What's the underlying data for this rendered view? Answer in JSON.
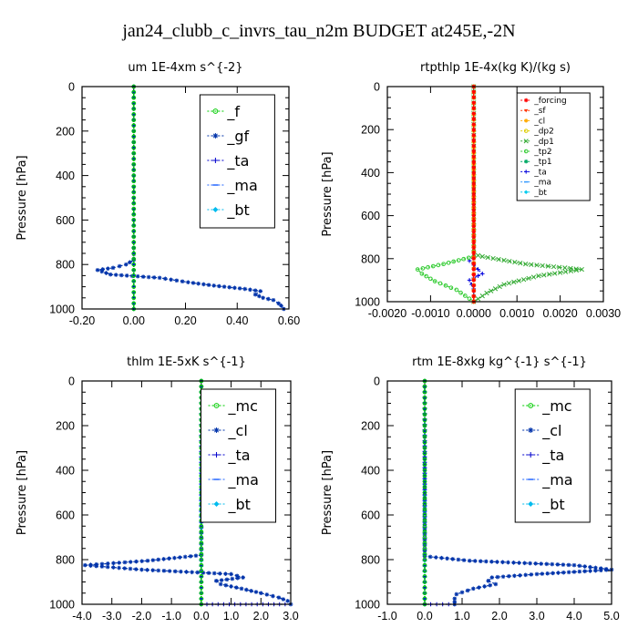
{
  "figure": {
    "title": "jan24_clubb_c_invrs_tau_n2m  BUDGET at245E,-2N"
  },
  "colors": {
    "f": "#00cc00",
    "gf": "#0033aa",
    "ta": "#0000cc",
    "ma": "#2266ff",
    "bt": "#00bbee",
    "mc": "#00cc00",
    "cl": "#0033aa",
    "forcing": "#ff0000",
    "sf": "#ff3300",
    "cl_small": "#ffaa00",
    "dp2": "#ddcc00",
    "dp1": "#33aa33",
    "tp2": "#33cc33",
    "tp1": "#00aa66",
    "ta_small": "#0000dd",
    "ma_small": "#3399ff",
    "bt_small": "#00ccee"
  },
  "chart_data": [
    {
      "type": "line",
      "title": "um   1E-4xm s^{-2}",
      "ylabel": "Pressure [hPa]",
      "xlim": [
        -0.2,
        0.6
      ],
      "ylim": [
        1000,
        0
      ],
      "xticks": [
        "-0.20",
        "0.00",
        "0.20",
        "0.40",
        "0.60"
      ],
      "xtick_values": [
        -0.2,
        0.0,
        0.2,
        0.4,
        0.6
      ],
      "yticks": [
        "0",
        "200",
        "400",
        "600",
        "800",
        "1000"
      ],
      "ytick_values": [
        0,
        200,
        400,
        600,
        800,
        1000
      ],
      "legend_style": "big",
      "series": [
        {
          "name": "_f",
          "color_key": "f",
          "marker": "o",
          "values": [
            [
              0,
              0
            ],
            [
              0,
              100
            ],
            [
              0,
              200
            ],
            [
              0,
              300
            ],
            [
              0,
              400
            ],
            [
              0,
              500
            ],
            [
              0,
              600
            ],
            [
              0,
              700
            ],
            [
              0,
              800
            ],
            [
              0,
              900
            ],
            [
              0,
              1000
            ]
          ]
        },
        {
          "name": "_gf",
          "color_key": "gf",
          "marker": "*",
          "values": [
            [
              0.0,
              0
            ],
            [
              0.0,
              500
            ],
            [
              0.0,
              700
            ],
            [
              0.0,
              780
            ],
            [
              -0.03,
              800
            ],
            [
              -0.08,
              815
            ],
            [
              -0.14,
              825
            ],
            [
              -0.09,
              845
            ],
            [
              0.1,
              860
            ],
            [
              0.21,
              880
            ],
            [
              0.31,
              895
            ],
            [
              0.43,
              910
            ],
            [
              0.49,
              920
            ],
            [
              0.47,
              935
            ],
            [
              0.5,
              950
            ],
            [
              0.54,
              960
            ],
            [
              0.56,
              975
            ],
            [
              0.57,
              985
            ],
            [
              0.58,
              1000
            ]
          ]
        },
        {
          "name": "_ta",
          "color_key": "ta",
          "marker": "+",
          "values": [
            [
              0,
              0
            ],
            [
              0,
              400
            ],
            [
              0,
              800
            ],
            [
              0,
              1000
            ]
          ]
        },
        {
          "name": "_ma",
          "color_key": "ma",
          "marker": "-",
          "values": [
            [
              0,
              0
            ],
            [
              0,
              400
            ],
            [
              0,
              800
            ],
            [
              0,
              1000
            ]
          ]
        },
        {
          "name": "_bt",
          "color_key": "bt",
          "marker": "d",
          "values": [
            [
              0,
              0
            ],
            [
              0,
              400
            ],
            [
              0,
              800
            ],
            [
              0,
              1000
            ]
          ]
        }
      ]
    },
    {
      "type": "line",
      "title": "rtpthlp   1E-4x(kg K)/(kg s)",
      "ylabel": "Pressure [hPa]",
      "xlim": [
        -0.002,
        0.003
      ],
      "ylim": [
        1000,
        0
      ],
      "xticks": [
        "-0.0020",
        "-0.0010",
        "0.0000",
        "0.0010",
        "0.0020",
        "0.0030"
      ],
      "xtick_values": [
        -0.002,
        -0.001,
        0.0,
        0.001,
        0.002,
        0.003
      ],
      "yticks": [
        "0",
        "200",
        "400",
        "600",
        "800",
        "1000"
      ],
      "ytick_values": [
        0,
        200,
        400,
        600,
        800,
        1000
      ],
      "legend_style": "small",
      "series": [
        {
          "name": "_forcing",
          "color_key": "forcing",
          "marker": "*",
          "values": [
            [
              0,
              0
            ],
            [
              0,
              200
            ],
            [
              0,
              400
            ],
            [
              0,
              600
            ],
            [
              0,
              800
            ],
            [
              0,
              1000
            ]
          ]
        },
        {
          "name": "_sf",
          "color_key": "sf",
          "marker": "v",
          "values": [
            [
              0,
              0
            ],
            [
              0,
              1000
            ]
          ]
        },
        {
          "name": "_cl",
          "color_key": "cl_small",
          "marker": "*",
          "values": [
            [
              0,
              0
            ],
            [
              0,
              1000
            ]
          ]
        },
        {
          "name": "_dp2",
          "color_key": "dp2",
          "marker": "o",
          "values": [
            [
              0,
              0
            ],
            [
              0,
              1000
            ]
          ]
        },
        {
          "name": "_dp1",
          "color_key": "dp1",
          "marker": "x",
          "values": [
            [
              0.0,
              0
            ],
            [
              0.0,
              780
            ],
            [
              0.0002,
              790
            ],
            [
              0.0012,
              825
            ],
            [
              0.0025,
              850
            ],
            [
              0.0015,
              880
            ],
            [
              0.0007,
              920
            ],
            [
              0.0003,
              960
            ],
            [
              0.0,
              1000
            ]
          ]
        },
        {
          "name": "_tp2",
          "color_key": "tp2",
          "marker": "o",
          "values": [
            [
              0.0,
              0
            ],
            [
              0.0,
              790
            ],
            [
              -0.0007,
              825
            ],
            [
              -0.0013,
              850
            ],
            [
              -0.0012,
              870
            ],
            [
              -0.0009,
              905
            ],
            [
              -0.0004,
              945
            ],
            [
              0.0,
              1000
            ]
          ]
        },
        {
          "name": "_tp1",
          "color_key": "tp1",
          "marker": "*",
          "values": [
            [
              0,
              0
            ],
            [
              0,
              1000
            ]
          ]
        },
        {
          "name": "_ta",
          "color_key": "ta_small",
          "marker": "+",
          "values": [
            [
              0.0,
              0
            ],
            [
              0.0,
              790
            ],
            [
              -0.0001,
              810
            ],
            [
              0.0001,
              850
            ],
            [
              0.0002,
              870
            ],
            [
              -0.0001,
              900
            ],
            [
              0.0,
              940
            ],
            [
              0.0,
              1000
            ]
          ]
        },
        {
          "name": "_ma",
          "color_key": "ma_small",
          "marker": "-",
          "values": [
            [
              0,
              0
            ],
            [
              0,
              1000
            ]
          ]
        },
        {
          "name": "_bt",
          "color_key": "bt_small",
          "marker": "d",
          "values": [
            [
              0,
              0
            ],
            [
              0,
              1000
            ]
          ]
        }
      ]
    },
    {
      "type": "line",
      "title": "thlm   1E-5xK s^{-1}",
      "ylabel": "Pressure [hPa]",
      "xlim": [
        -4.0,
        3.0
      ],
      "ylim": [
        1000,
        0
      ],
      "xticks": [
        "-4.0",
        "-3.0",
        "-2.0",
        "-1.0",
        "0.0",
        "1.0",
        "2.0",
        "3.0"
      ],
      "xtick_values": [
        -4,
        -3,
        -2,
        -1,
        0,
        1,
        2,
        3
      ],
      "yticks": [
        "0",
        "200",
        "400",
        "600",
        "800",
        "1000"
      ],
      "ytick_values": [
        0,
        200,
        400,
        600,
        800,
        1000
      ],
      "legend_style": "big",
      "series": [
        {
          "name": "_mc",
          "color_key": "mc",
          "marker": "o",
          "values": [
            [
              0,
              0
            ],
            [
              0,
              100
            ],
            [
              0,
              200
            ],
            [
              0,
              300
            ],
            [
              0,
              400
            ],
            [
              0,
              500
            ],
            [
              0,
              600
            ],
            [
              0,
              700
            ],
            [
              0,
              800
            ],
            [
              0,
              900
            ],
            [
              0,
              1000
            ]
          ]
        },
        {
          "name": "_cl",
          "color_key": "cl",
          "marker": "*",
          "values": [
            [
              0.0,
              0
            ],
            [
              0.0,
              500
            ],
            [
              0.0,
              780
            ],
            [
              -1.8,
              805
            ],
            [
              -3.9,
              825
            ],
            [
              -2.0,
              845
            ],
            [
              1.0,
              865
            ],
            [
              1.4,
              880
            ],
            [
              0.5,
              895
            ],
            [
              0.65,
              910
            ],
            [
              1.35,
              930
            ],
            [
              2.0,
              950
            ],
            [
              2.6,
              970
            ],
            [
              2.9,
              985
            ],
            [
              3.0,
              1000
            ]
          ]
        },
        {
          "name": "_ta",
          "color_key": "ta",
          "marker": "+",
          "values": [
            [
              0,
              0
            ],
            [
              0,
              800
            ],
            [
              0,
              1000
            ],
            [
              3.0,
              1000
            ]
          ]
        },
        {
          "name": "_ma",
          "color_key": "ma",
          "marker": "-",
          "values": [
            [
              0,
              0
            ],
            [
              0,
              1000
            ]
          ]
        },
        {
          "name": "_bt",
          "color_key": "bt",
          "marker": "d",
          "values": [
            [
              0,
              0
            ],
            [
              0,
              1000
            ]
          ]
        }
      ]
    },
    {
      "type": "line",
      "title": "rtm   1E-8xkg kg^{-1} s^{-1}",
      "ylabel": "Pressure [hPa]",
      "xlim": [
        -1.0,
        5.0
      ],
      "ylim": [
        1000,
        0
      ],
      "xticks": [
        "-1.0",
        "0.0",
        "1.0",
        "2.0",
        "3.0",
        "4.0",
        "5.0"
      ],
      "xtick_values": [
        -1,
        0,
        1,
        2,
        3,
        4,
        5
      ],
      "yticks": [
        "0",
        "200",
        "400",
        "600",
        "800",
        "1000"
      ],
      "ytick_values": [
        0,
        200,
        400,
        600,
        800,
        1000
      ],
      "legend_style": "big",
      "series": [
        {
          "name": "_mc",
          "color_key": "mc",
          "marker": "o",
          "values": [
            [
              0,
              0
            ],
            [
              0,
              100
            ],
            [
              0,
              200
            ],
            [
              0,
              300
            ],
            [
              0,
              400
            ],
            [
              0,
              500
            ],
            [
              0,
              600
            ],
            [
              0,
              700
            ],
            [
              0,
              800
            ],
            [
              0,
              900
            ],
            [
              0,
              1000
            ]
          ]
        },
        {
          "name": "_cl",
          "color_key": "cl",
          "marker": "*",
          "values": [
            [
              0.0,
              0
            ],
            [
              0.0,
              500
            ],
            [
              0.0,
              785
            ],
            [
              1.2,
              805
            ],
            [
              4.0,
              825
            ],
            [
              5.0,
              845
            ],
            [
              3.0,
              865
            ],
            [
              1.8,
              880
            ],
            [
              1.7,
              895
            ],
            [
              1.9,
              910
            ],
            [
              1.3,
              930
            ],
            [
              0.85,
              955
            ],
            [
              0.8,
              975
            ],
            [
              0.8,
              990
            ],
            [
              0.8,
              1000
            ]
          ]
        },
        {
          "name": "_ta",
          "color_key": "ta",
          "marker": "+",
          "values": [
            [
              0,
              0
            ],
            [
              0,
              800
            ],
            [
              0,
              1000
            ],
            [
              0.8,
              1000
            ]
          ]
        },
        {
          "name": "_ma",
          "color_key": "ma",
          "marker": "-",
          "values": [
            [
              0,
              0
            ],
            [
              0,
              1000
            ]
          ]
        },
        {
          "name": "_bt",
          "color_key": "bt",
          "marker": "d",
          "values": [
            [
              0,
              0
            ],
            [
              0,
              1000
            ]
          ]
        }
      ]
    }
  ]
}
